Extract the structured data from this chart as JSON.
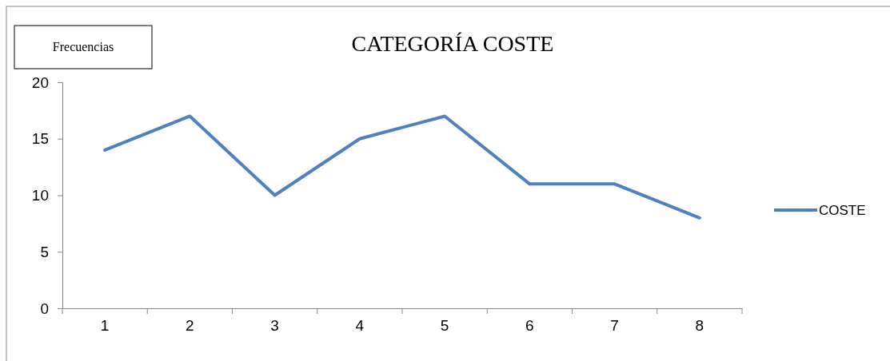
{
  "chart_data": {
    "type": "line",
    "title": "CATEGORÍA COSTE",
    "ylabel": "Frecuencias",
    "categories": [
      "1",
      "2",
      "3",
      "4",
      "5",
      "6",
      "7",
      "8"
    ],
    "series": [
      {
        "name": "COSTE",
        "color": "#4f81bd",
        "values": [
          14,
          17,
          10,
          15,
          17,
          11,
          11,
          8
        ]
      }
    ],
    "ylim": [
      0,
      20
    ],
    "yticks": [
      0,
      5,
      10,
      15,
      20
    ],
    "grid": false,
    "legend": "right",
    "marker": "none",
    "line_style": "solid"
  }
}
